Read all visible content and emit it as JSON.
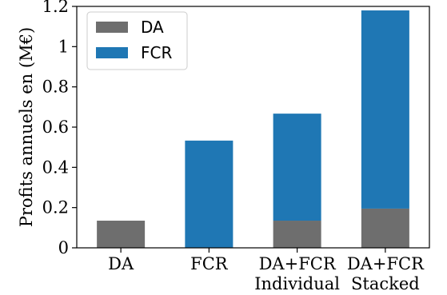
{
  "chart_data": {
    "type": "bar",
    "stacked": true,
    "categories": [
      [
        "DA"
      ],
      [
        "FCR"
      ],
      [
        "DA+FCR",
        "Individual"
      ],
      [
        "DA+FCR",
        "Stacked"
      ]
    ],
    "series": [
      {
        "name": "DA",
        "color": "#6e6e6e",
        "values": [
          0.135,
          0,
          0.135,
          0.195
        ]
      },
      {
        "name": "FCR",
        "color": "#1f77b4",
        "values": [
          0,
          0.533,
          0.532,
          0.985
        ]
      }
    ],
    "ylabel": "Profits annuels en (M€)",
    "ylim": [
      0,
      1.2
    ],
    "yticks": [
      0,
      0.2,
      0.4,
      0.6,
      0.8,
      1,
      1.2
    ],
    "ytick_labels": [
      "0",
      "0.2",
      "0.4",
      "0.6",
      "0.8",
      "1",
      "1.2"
    ],
    "grid": false,
    "legend_position": "top-left"
  }
}
